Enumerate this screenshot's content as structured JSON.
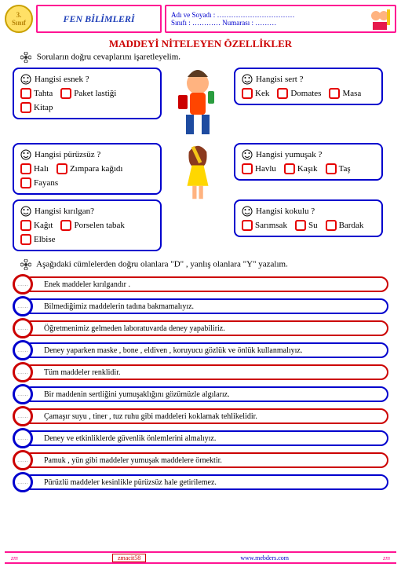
{
  "grade": {
    "num": "3.",
    "label": "Sınıf"
  },
  "subject": "FEN  BİLİMLERİ",
  "info": {
    "name_label": "Adı ve Soyadı :",
    "name_dots": "……………………………",
    "class_label": "Sınıfı :",
    "class_dots": "…………",
    "no_label": "Numarası :",
    "no_dots": "………"
  },
  "title": "MADDEYİ   NİTELEYEN   ÖZELLİKLER",
  "instr1": "Soruların doğru cevaplarını işaretleyelim.",
  "questions": [
    {
      "q": "Hangisi   esnek ?",
      "opts": [
        "Tahta",
        "Paket lastiği",
        "Kitap"
      ]
    },
    {
      "q": "Hangisi   sert ?",
      "opts": [
        "Kek",
        "Domates",
        "Masa"
      ]
    },
    {
      "q": "Hangisi   pürüzsüz ?",
      "opts": [
        "Halı",
        "Zımpara kağıdı",
        "Fayans"
      ]
    },
    {
      "q": "Hangisi   yumuşak ?",
      "opts": [
        "Havlu",
        "Kaşık",
        "Taş"
      ]
    },
    {
      "q": "Hangisi   kırılgan?",
      "opts": [
        "Kağıt",
        "Porselen   tabak",
        "Elbise"
      ]
    },
    {
      "q": "Hangisi   kokulu ?",
      "opts": [
        "Sarımsak",
        "Su",
        "Bardak"
      ]
    }
  ],
  "instr2": "Aşağıdaki cümlelerden doğru olanlara \"D\" , yanlış olanlara  \"Y\"  yazalım.",
  "tf_items": [
    {
      "text": "Enek  maddeler  kırılgandır .",
      "color": "#c00"
    },
    {
      "text": "Bilmediğimiz  maddelerin tadına bakmamalıyız.",
      "color": "#0000cd"
    },
    {
      "text": "Öğretmenimiz gelmeden laboratuvarda deney yapabiliriz.",
      "color": "#c00"
    },
    {
      "text": "Deney yaparken maske , bone , eldiven , koruyucu gözlük ve önlük kullanmalıyız.",
      "color": "#0000cd"
    },
    {
      "text": "Tüm  maddeler  renklidir.",
      "color": "#c00"
    },
    {
      "text": "Bir maddenin sertliğini yumuşaklığını gözümüzle algılarız.",
      "color": "#0000cd"
    },
    {
      "text": "Çamaşır suyu , tiner , tuz ruhu gibi maddeleri koklamak tehlikelidir.",
      "color": "#c00"
    },
    {
      "text": "Deney  ve  etkinliklerde güvenlik önlemlerini almalıyız.",
      "color": "#0000cd"
    },
    {
      "text": "Pamuk , yün gibi maddeler yumuşak maddelere örnektir.",
      "color": "#c00"
    },
    {
      "text": "Pürüzlü  maddeler kesinlikle pürüzsüz hale  getirilemez.",
      "color": "#0000cd"
    }
  ],
  "dots": "……",
  "footer": {
    "code": "zmacit58",
    "site": "www.mebders.com",
    "sig": "zm"
  }
}
